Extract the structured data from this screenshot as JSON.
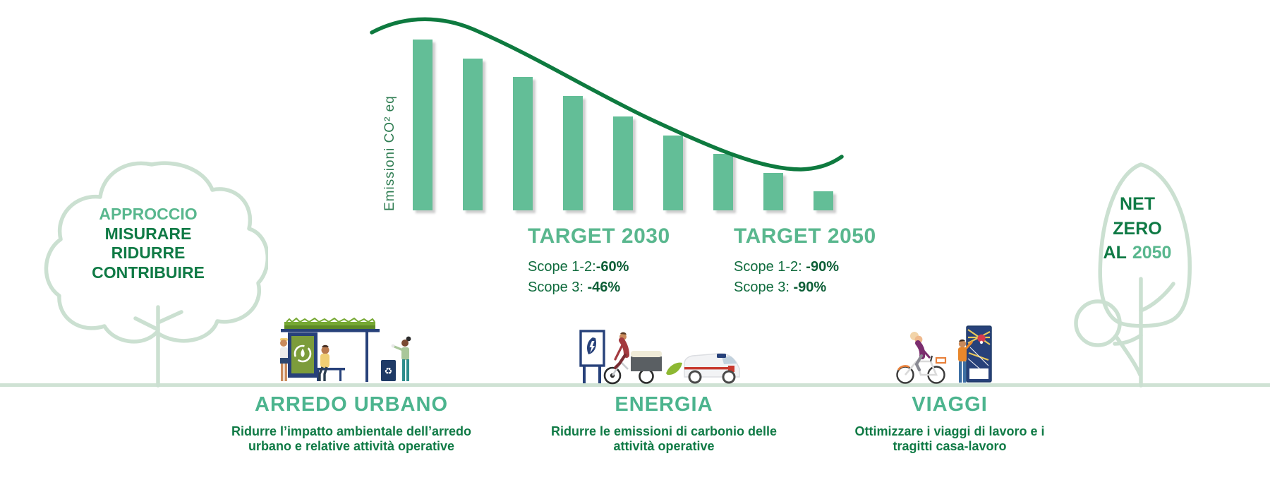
{
  "chart": {
    "y_axis_label": "Emissioni CO² eq"
  },
  "chart_data": {
    "type": "bar",
    "title": "",
    "xlabel": "",
    "ylabel": "Emissioni CO² eq",
    "categories": [
      "",
      "",
      "",
      "",
      "",
      "",
      "",
      "",
      ""
    ],
    "values_percent_of_first": [
      100,
      89,
      78,
      67,
      55,
      44,
      33,
      22,
      11
    ],
    "x_tick_labels": [],
    "y_tick_labels": [],
    "grid": false,
    "legend": false,
    "bar_color": "#63BE97",
    "trend_line": {
      "description": "smooth dark-green S-curve descending left-to-right above the bars with slight upturn at the end",
      "color": "#0E7A3F"
    }
  },
  "targets": {
    "t2030": {
      "title": "TARGET 2030",
      "scope12_label": "Scope 1-2:",
      "scope12_value": "-60%",
      "scope3_label": "Scope 3: ",
      "scope3_value": "-46%"
    },
    "t2050": {
      "title": "TARGET 2050",
      "scope12_label": "Scope 1-2: ",
      "scope12_value": "-90%",
      "scope3_label": "Scope 3: ",
      "scope3_value": "-90%"
    }
  },
  "left_tree": {
    "line1": "APPROCCIO",
    "line2": "MISURARE",
    "line3": "RIDURRE",
    "line4": "CONTRIBUIRE"
  },
  "right_tree": {
    "line1": "NET",
    "line2": "ZERO",
    "line3_prefix": "AL",
    "line3_year": "2050"
  },
  "sections": {
    "arredo": {
      "title": "ARREDO URBANO",
      "desc_line1": "Ridurre l’impatto ambientale dell’arredo",
      "desc_line2": "urbano e relative attività operative"
    },
    "energia": {
      "title": "ENERGIA",
      "desc_line1": "Ridurre le emissioni di carbonio delle",
      "desc_line2": "attività operative"
    },
    "viaggi": {
      "title": "VIAGGI",
      "desc_line1": "Ottimizzare i viaggi di lavoro e i",
      "desc_line2": "tragitti casa-lavoro"
    }
  },
  "colors": {
    "bar_green": "#63BE97",
    "curve_green": "#0E7A3F",
    "accent_green": "#59B78E",
    "dark_green": "#0F7A45",
    "tree_outline": "#CBE0D1",
    "ground": "#CFE2D4",
    "navy": "#27417A"
  }
}
